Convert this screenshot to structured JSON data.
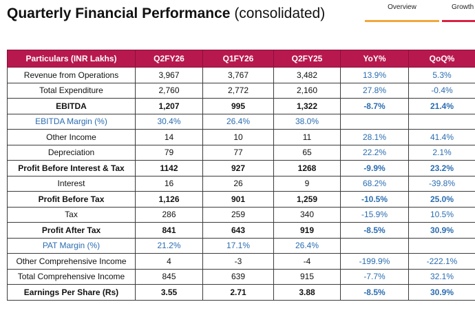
{
  "header": {
    "title_bold": "Quarterly Financial Performance",
    "title_sub": "(consolidated)"
  },
  "tabs": [
    {
      "label": "Overview"
    },
    {
      "label": "Growth &"
    }
  ],
  "table": {
    "columns": [
      "Particulars (INR Lakhs)",
      "Q2FY26",
      "Q1FY26",
      "Q2FY25",
      "YoY%",
      "QoQ%"
    ],
    "rows": [
      {
        "label": "Revenue from Operations",
        "q2fy26": "3,967",
        "q1fy26": "3,767",
        "q2fy25": "3,482",
        "yoy": "13.9%",
        "qoq": "5.3%"
      },
      {
        "label": "Total Expenditure",
        "q2fy26": "2,760",
        "q1fy26": "2,772",
        "q2fy25": "2,160",
        "yoy": "27.8%",
        "qoq": "-0.4%"
      },
      {
        "label": "EBITDA",
        "q2fy26": "1,207",
        "q1fy26": "995",
        "q2fy25": "1,322",
        "yoy": "-8.7%",
        "qoq": "21.4%"
      },
      {
        "label": "EBITDA Margin (%)",
        "q2fy26": "30.4%",
        "q1fy26": "26.4%",
        "q2fy25": "38.0%",
        "yoy": "",
        "qoq": ""
      },
      {
        "label": "Other Income",
        "q2fy26": "14",
        "q1fy26": "10",
        "q2fy25": "11",
        "yoy": "28.1%",
        "qoq": "41.4%"
      },
      {
        "label": "Depreciation",
        "q2fy26": "79",
        "q1fy26": "77",
        "q2fy25": "65",
        "yoy": "22.2%",
        "qoq": "2.1%"
      },
      {
        "label": "Profit Before Interest & Tax",
        "q2fy26": "1142",
        "q1fy26": "927",
        "q2fy25": "1268",
        "yoy": "-9.9%",
        "qoq": "23.2%"
      },
      {
        "label": "Interest",
        "q2fy26": "16",
        "q1fy26": "26",
        "q2fy25": "9",
        "yoy": "68.2%",
        "qoq": "-39.8%"
      },
      {
        "label": "Profit Before Tax",
        "q2fy26": "1,126",
        "q1fy26": "901",
        "q2fy25": "1,259",
        "yoy": "-10.5%",
        "qoq": "25.0%"
      },
      {
        "label": "Tax",
        "q2fy26": "286",
        "q1fy26": "259",
        "q2fy25": "340",
        "yoy": "-15.9%",
        "qoq": "10.5%"
      },
      {
        "label": "Profit After Tax",
        "q2fy26": "841",
        "q1fy26": "643",
        "q2fy25": "919",
        "yoy": "-8.5%",
        "qoq": "30.9%"
      },
      {
        "label": "PAT Margin (%)",
        "q2fy26": "21.2%",
        "q1fy26": "17.1%",
        "q2fy25": "26.4%",
        "yoy": "",
        "qoq": ""
      },
      {
        "label": "Other Comprehensive Income",
        "q2fy26": "4",
        "q1fy26": "-3",
        "q2fy25": "-4",
        "yoy": "-199.9%",
        "qoq": "-222.1%"
      },
      {
        "label": "Total Comprehensive Income",
        "q2fy26": "845",
        "q1fy26": "639",
        "q2fy25": "915",
        "yoy": "-7.7%",
        "qoq": "32.1%"
      },
      {
        "label": "Earnings Per Share (Rs)",
        "q2fy26": "3.55",
        "q1fy26": "2.71",
        "q2fy25": "3.88",
        "yoy": "-8.5%",
        "qoq": "30.9%"
      }
    ]
  },
  "colors": {
    "header_bg": "#b7194f",
    "percent_text": "#2a6cb0",
    "tab_overview_accent": "#f3a63a",
    "tab_growth_accent": "#d92140"
  }
}
